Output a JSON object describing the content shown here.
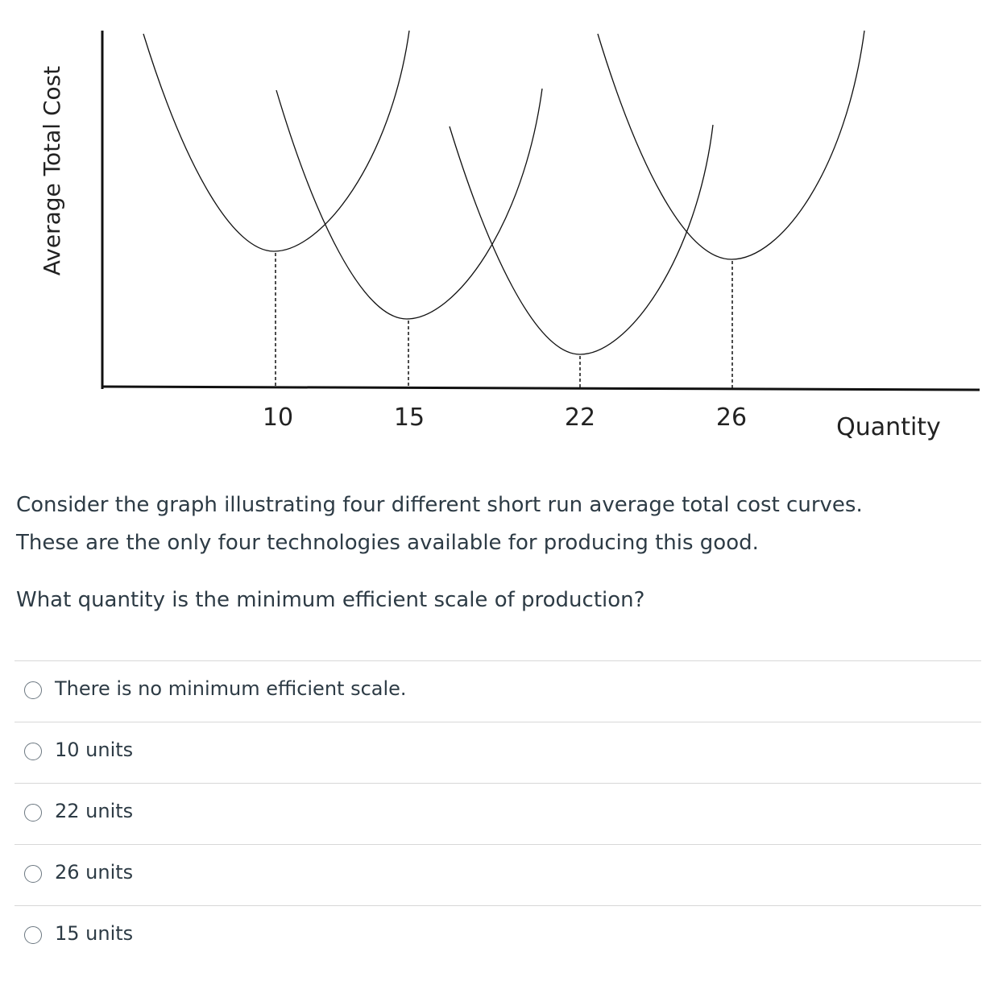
{
  "graph": {
    "y_axis_label": "Average Total Cost",
    "x_axis_label": "Quantity",
    "x_tick_labels": [
      10,
      15,
      22,
      26
    ]
  },
  "question": {
    "paragraphs": [
      "Consider the graph illustrating four different short run average total cost curves.",
      "These are the only four technologies available for producing this good."
    ],
    "prompt": "What quantity is the minimum efficient scale of production?"
  },
  "answers": [
    "There is no minimum efficient scale.",
    "10 units",
    "22 units",
    "26 units",
    "15 units"
  ]
}
